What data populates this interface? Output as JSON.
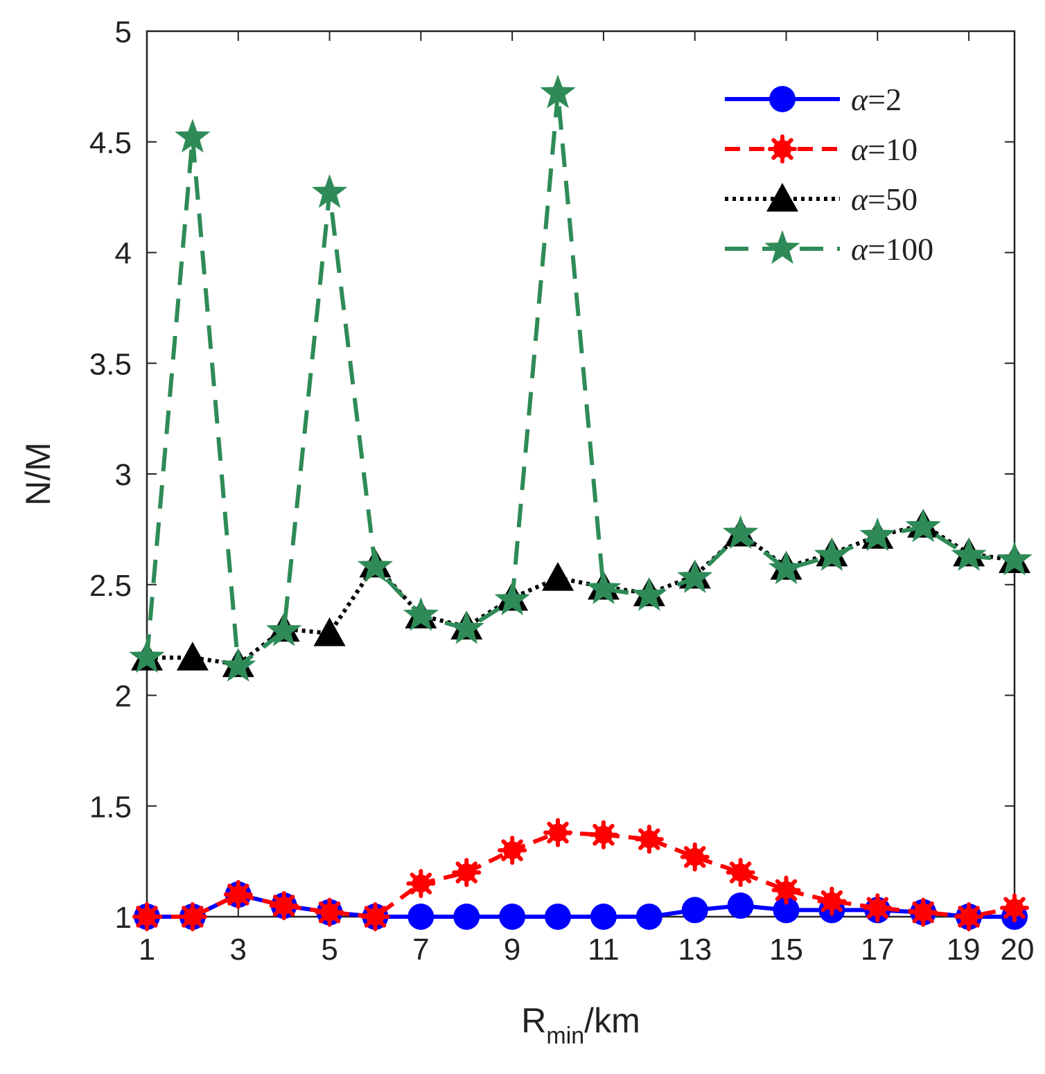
{
  "chart_data": {
    "type": "line",
    "xlabel_main": "R",
    "xlabel_sub": "min",
    "xlabel_unit": "/km",
    "ylabel": "N/M",
    "xlim": [
      1,
      20
    ],
    "ylim": [
      1,
      5
    ],
    "x_ticks": [
      1,
      3,
      5,
      7,
      9,
      11,
      13,
      15,
      17,
      19,
      20
    ],
    "x_tick_labels": [
      "1",
      "3",
      "5",
      "7",
      "9",
      "11",
      "13",
      "15",
      "17",
      "19",
      "20"
    ],
    "y_ticks": [
      1,
      1.5,
      2,
      2.5,
      3,
      3.5,
      4,
      4.5,
      5
    ],
    "y_tick_labels": [
      "1",
      "1.5",
      "2",
      "2.5",
      "3",
      "3.5",
      "4",
      "4.5",
      "5"
    ],
    "x": [
      1,
      2,
      3,
      4,
      5,
      6,
      7,
      8,
      9,
      10,
      11,
      12,
      13,
      14,
      15,
      16,
      17,
      18,
      19,
      20
    ],
    "legend_position": "top-right",
    "series": [
      {
        "name": "α=2",
        "legend_symbol": "α",
        "legend_value": "=2",
        "color": "#0000ff",
        "marker": "circle",
        "dash": "solid",
        "values": [
          1.0,
          1.0,
          1.1,
          1.05,
          1.02,
          1.0,
          1.0,
          1.0,
          1.0,
          1.0,
          1.0,
          1.0,
          1.03,
          1.05,
          1.03,
          1.03,
          1.03,
          1.02,
          1.0,
          1.0
        ]
      },
      {
        "name": "α=10",
        "legend_symbol": "α",
        "legend_value": "=10",
        "color": "#ff0000",
        "marker": "asterisk",
        "dash": "dashed",
        "values": [
          1.0,
          1.0,
          1.1,
          1.05,
          1.02,
          1.0,
          1.15,
          1.2,
          1.3,
          1.38,
          1.37,
          1.35,
          1.27,
          1.2,
          1.12,
          1.07,
          1.04,
          1.02,
          1.0,
          1.04
        ]
      },
      {
        "name": "α=50",
        "legend_symbol": "α",
        "legend_value": "=50",
        "color": "#000000",
        "marker": "triangle",
        "dash": "dotted",
        "values": [
          2.17,
          2.17,
          2.14,
          2.3,
          2.28,
          2.59,
          2.36,
          2.31,
          2.44,
          2.53,
          2.49,
          2.46,
          2.54,
          2.73,
          2.58,
          2.64,
          2.72,
          2.77,
          2.64,
          2.61
        ]
      },
      {
        "name": "α=100",
        "legend_symbol": "α",
        "legend_value": "=100",
        "color": "#2e8b57",
        "marker": "star",
        "dash": "longdash",
        "values": [
          2.17,
          4.52,
          2.13,
          2.29,
          4.27,
          2.58,
          2.36,
          2.3,
          2.43,
          4.72,
          2.48,
          2.45,
          2.53,
          2.73,
          2.57,
          2.63,
          2.72,
          2.76,
          2.63,
          2.61
        ]
      }
    ]
  }
}
